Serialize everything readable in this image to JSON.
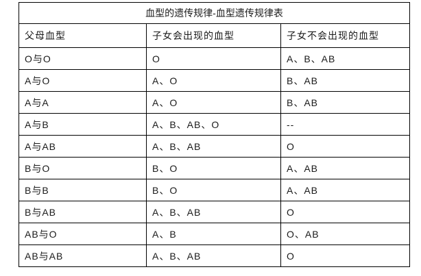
{
  "table": {
    "title": "血型的遗传规律-血型遗传规律表",
    "columns": [
      "父母血型",
      "子女会出现的血型",
      "子女不会出现的血型"
    ],
    "rows": [
      [
        "O与O",
        "O",
        "A、B、AB"
      ],
      [
        "A与O",
        "A、O",
        "B、AB"
      ],
      [
        "A与A",
        "A、O",
        "B、AB"
      ],
      [
        "A与B",
        "A、B、AB、O",
        "--"
      ],
      [
        "A与AB",
        "A、B、AB",
        "O"
      ],
      [
        "B与O",
        "B、O",
        "A、AB"
      ],
      [
        "B与B",
        "B、O",
        "A、AB"
      ],
      [
        "B与AB",
        "A、B、AB",
        "O"
      ],
      [
        "AB与O",
        "A、B",
        "O、AB"
      ],
      [
        "AB与AB",
        "A、B、AB",
        "O"
      ]
    ],
    "colors": {
      "border": "#000000",
      "text": "#1a1a1a",
      "background": "#ffffff"
    }
  }
}
